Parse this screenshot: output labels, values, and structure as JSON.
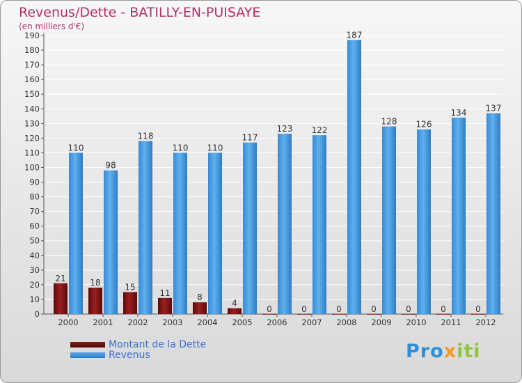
{
  "chart_data": {
    "type": "bar",
    "title": "Revenus/Dette - BATILLY-EN-PUISAYE",
    "subtitle": "(en milliers d'€)",
    "categories": [
      "2000",
      "2001",
      "2002",
      "2003",
      "2004",
      "2005",
      "2006",
      "2007",
      "2008",
      "2009",
      "2010",
      "2011",
      "2012"
    ],
    "series": [
      {
        "name": "Montant de la Dette",
        "color": "#6b0f0f",
        "values": [
          21,
          18,
          15,
          11,
          8,
          4,
          0,
          0,
          0,
          0,
          0,
          0,
          0
        ]
      },
      {
        "name": "Revenus",
        "color": "#3d8fd8",
        "values": [
          110,
          98,
          118,
          110,
          110,
          117,
          123,
          122,
          187,
          128,
          126,
          134,
          137
        ]
      }
    ],
    "ylim": [
      0,
      190
    ],
    "ytick_step": 10,
    "ytick_labels": [
      "0",
      "10",
      "20",
      "30",
      "40",
      "50",
      "60",
      "70",
      "80",
      "90",
      "100",
      "110",
      "120",
      "130",
      "140",
      "150",
      "160",
      "170",
      "180",
      "190"
    ],
    "grid": true,
    "legend_position": "bottom-left"
  },
  "legend": {
    "items": [
      {
        "label": "Montant de la Dette",
        "color": "#6b0f0f"
      },
      {
        "label": "Revenus",
        "color": "#3d8fd8"
      }
    ]
  },
  "logo": {
    "part1": "Pro",
    "part2": "x",
    "part3": "iti"
  }
}
